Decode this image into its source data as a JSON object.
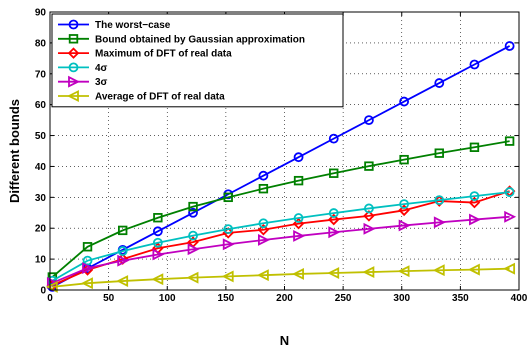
{
  "chart_data": {
    "type": "line",
    "xlabel": "N",
    "ylabel": "Different bounds",
    "xlim": [
      0,
      400
    ],
    "ylim": [
      0,
      90
    ],
    "xticks": [
      0,
      50,
      100,
      150,
      200,
      250,
      300,
      350,
      400
    ],
    "yticks": [
      0,
      10,
      20,
      30,
      40,
      50,
      60,
      70,
      80,
      90
    ],
    "grid": "dotted",
    "legend_position": "top-left",
    "x": [
      2,
      32,
      62,
      92,
      122,
      152,
      182,
      212,
      242,
      272,
      302,
      332,
      362,
      392
    ],
    "series": [
      {
        "name": "The worst−case",
        "color": "#0000ff",
        "marker": "circle",
        "values": [
          1,
          7,
          13,
          19,
          25,
          31,
          37,
          43,
          49,
          55,
          61,
          67,
          73,
          79
        ]
      },
      {
        "name": "Bound obtained by Gaussian approximation",
        "color": "#008000",
        "marker": "square",
        "values": [
          4.2,
          14,
          19.3,
          23.4,
          27,
          30,
          32.8,
          35.4,
          37.8,
          40.1,
          42.2,
          44.3,
          46.2,
          48.2
        ]
      },
      {
        "name": "Maximum of DFT of real data",
        "color": "#ff0000",
        "marker": "diamond",
        "values": [
          1.5,
          6.5,
          10,
          13.5,
          15.5,
          18.5,
          19.5,
          21.5,
          22.8,
          24,
          25.8,
          28.8,
          28.3,
          32
        ]
      },
      {
        "name": "4σ",
        "color": "#00c0c0",
        "marker": "circle",
        "values": [
          3,
          9.5,
          12.6,
          15.3,
          17.6,
          19.7,
          21.6,
          23.3,
          24.9,
          26.4,
          27.8,
          29.1,
          30.4,
          31.7
        ]
      },
      {
        "name": "3σ",
        "color": "#c000c0",
        "marker": "triangle-right",
        "values": [
          2.3,
          7.1,
          9.5,
          11.5,
          13.2,
          14.8,
          16.2,
          17.5,
          18.7,
          19.8,
          20.9,
          21.9,
          22.8,
          23.7
        ]
      },
      {
        "name": "Average of DFT of real data",
        "color": "#c0c000",
        "marker": "triangle-left",
        "values": [
          1,
          2.2,
          2.9,
          3.5,
          4,
          4.4,
          4.8,
          5.2,
          5.5,
          5.8,
          6.1,
          6.4,
          6.6,
          6.9
        ]
      }
    ]
  }
}
